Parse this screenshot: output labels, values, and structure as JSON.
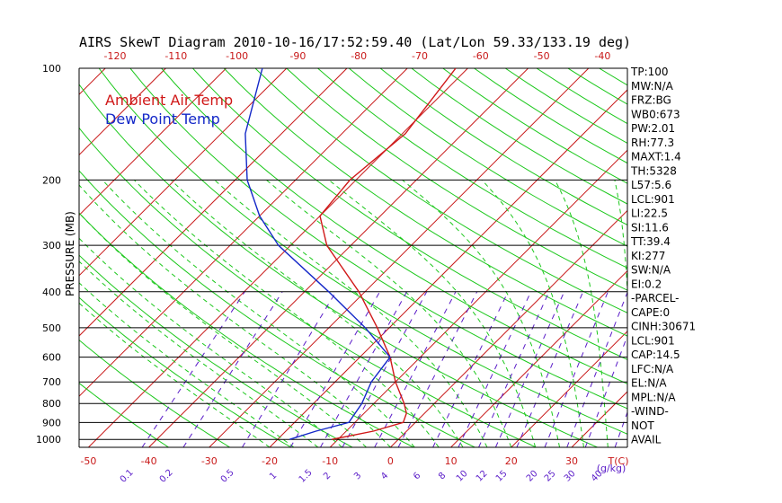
{
  "chart_data": {
    "type": "line",
    "title": "AIRS SkewT Diagram 2010-10-16/17:52:59.40 (Lat/Lon 59.33/133.19 deg)",
    "ylabel": "PRESSURE (MB)",
    "xlabel_bottom_unit": "T(C)",
    "mixing_ratio_unit": "(g/kg)",
    "y_scale": "log-inverted",
    "ylim": [
      1050,
      100
    ],
    "pressure_ticks": [
      100,
      200,
      300,
      400,
      500,
      600,
      700,
      800,
      900,
      1000
    ],
    "bottom_temp_ticks": [
      -50,
      -40,
      -30,
      -20,
      -10,
      0,
      10,
      20,
      30
    ],
    "top_temp_ticks": [
      -120,
      -110,
      -100,
      -90,
      -80,
      -70,
      -60,
      -50,
      -40
    ],
    "mixing_ratio_ticks": [
      "0.1",
      "0.2",
      "0.5",
      "1",
      "1.5",
      "2",
      "3",
      "4",
      "6",
      "8",
      "10",
      "12",
      "15",
      "20",
      "25",
      "30",
      "40"
    ],
    "legend": [
      "Ambient Air Temp",
      "Dew Point Temp"
    ],
    "series": [
      {
        "name": "Ambient Air Temp",
        "color": "#d01818",
        "points": [
          {
            "p": 1000,
            "t": -11
          },
          {
            "p": 950,
            "t": -5.5
          },
          {
            "p": 900,
            "t": -2
          },
          {
            "p": 850,
            "t": -3
          },
          {
            "p": 800,
            "t": -5
          },
          {
            "p": 700,
            "t": -10
          },
          {
            "p": 600,
            "t": -15
          },
          {
            "p": 500,
            "t": -22
          },
          {
            "p": 400,
            "t": -31
          },
          {
            "p": 300,
            "t": -44
          },
          {
            "p": 250,
            "t": -50
          },
          {
            "p": 200,
            "t": -51
          },
          {
            "p": 150,
            "t": -49.5
          },
          {
            "p": 100,
            "t": -52
          }
        ]
      },
      {
        "name": "Dew Point Temp",
        "color": "#1428c8",
        "points": [
          {
            "p": 1000,
            "t": -18
          },
          {
            "p": 950,
            "t": -15
          },
          {
            "p": 900,
            "t": -11
          },
          {
            "p": 800,
            "t": -12
          },
          {
            "p": 700,
            "t": -14
          },
          {
            "p": 600,
            "t": -15
          },
          {
            "p": 500,
            "t": -24
          },
          {
            "p": 400,
            "t": -36
          },
          {
            "p": 300,
            "t": -52
          },
          {
            "p": 250,
            "t": -60
          },
          {
            "p": 200,
            "t": -68
          },
          {
            "p": 150,
            "t": -76
          },
          {
            "p": 100,
            "t": -84
          }
        ]
      }
    ],
    "stats": [
      "TP:100",
      "MW:N/A",
      "FRZ:BG",
      "WB0:673",
      "PW:2.01",
      "RH:77.3",
      "MAXT:1.4",
      "TH:5328",
      "L57:5.6",
      "LCL:901",
      "LI:22.5",
      "SI:11.6",
      "TT:39.4",
      "KI:277",
      "SW:N/A",
      "EI:0.2",
      "-PARCEL-",
      "CAPE:0",
      "CINH:30671",
      "LCL:901",
      "CAP:14.5",
      "LFC:N/A",
      "EL:N/A",
      "MPL:N/A",
      "-WIND-",
      "NOT",
      "AVAIL"
    ],
    "colors": {
      "isotherm": "#c81818",
      "dry_adiabat": "#1cc81c",
      "moist_adiabat": "#1cc81c",
      "mixing_ratio": "#5a1cc8",
      "grid": "#000000",
      "tick_labels_temp": "#c81818",
      "tick_labels_pressure": "#000000",
      "tick_labels_mix": "#5a1cc8",
      "legend_air": "#d01818",
      "legend_dew": "#1428c8"
    }
  }
}
